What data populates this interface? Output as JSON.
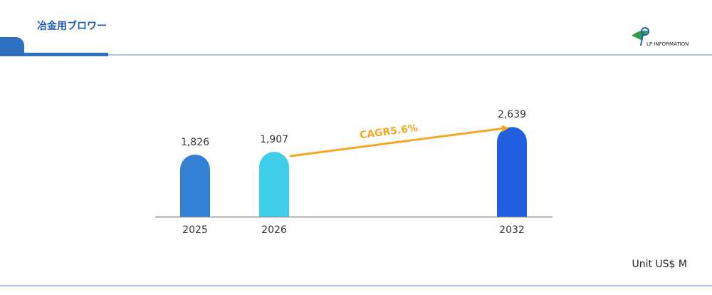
{
  "logo": "LP INFORMATION",
  "chart_data": {
    "type": "bar",
    "title": "冶金用ブロワー",
    "categories": [
      "2025",
      "2026",
      "2032"
    ],
    "values": [
      1826,
      1907,
      2639
    ],
    "value_labels": [
      "1,826",
      "1,907",
      "2,639"
    ],
    "colors": [
      "#3380d4",
      "#3fcde8",
      "#1f5fe0"
    ],
    "ylim": [
      0,
      3000
    ],
    "annotation": "CAGR5.6%",
    "annotation_color": "#f5a623",
    "unit": "Unit US$ M"
  }
}
